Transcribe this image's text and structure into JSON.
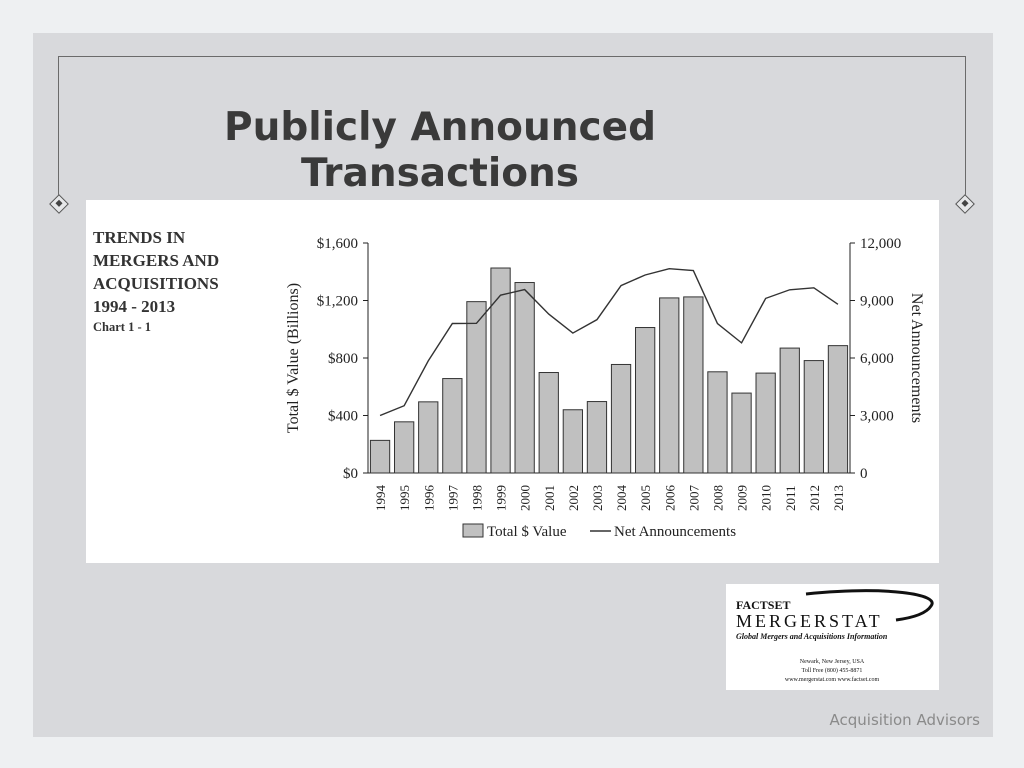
{
  "slide": {
    "title": "Publicly Announced Transactions",
    "footer": "Acquisition Advisors"
  },
  "chart_heading": {
    "line1": "TRENDS IN",
    "line2": "MERGERS AND",
    "line3": "ACQUISITIONS",
    "line4": "1994 - 2013",
    "line5": "Chart 1 - 1"
  },
  "logo": {
    "brand_top": "FACTSET",
    "brand_main": "MERGERSTAT",
    "tagline": "Global Mergers and Acquisitions Information",
    "address": "Newark, New Jersey, USA",
    "phone": "Toll Free (800) 455-8871",
    "websites": "www.mergerstat.com   www.factset.com"
  },
  "colors": {
    "bar_fill": "#c0c0c0",
    "bar_stroke": "#333333",
    "line": "#333333",
    "title": "#3a3a3a"
  },
  "chart_data": {
    "type": "bar",
    "title": "",
    "xlabel": "",
    "ylabel": "Total $ Value (Billions)",
    "y2label": "Net Announcements",
    "ylim": [
      0,
      1600
    ],
    "y2lim": [
      0,
      12000
    ],
    "y_ticks": [
      "$0",
      "$400",
      "$800",
      "$1,200",
      "$1,600"
    ],
    "y2_ticks": [
      "0",
      "3,000",
      "6,000",
      "9,000",
      "12,000"
    ],
    "categories": [
      "1994",
      "1995",
      "1996",
      "1997",
      "1998",
      "1999",
      "2000",
      "2001",
      "2002",
      "2003",
      "2004",
      "2005",
      "2006",
      "2007",
      "2008",
      "2009",
      "2010",
      "2011",
      "2012",
      "2013"
    ],
    "legend_position": "bottom",
    "series": [
      {
        "name": "Total $ Value",
        "type": "bar",
        "axis": "left",
        "values": [
          227,
          356,
          495,
          657,
          1192,
          1426,
          1325,
          699,
          440,
          497,
          755,
          1012,
          1218,
          1225,
          704,
          556,
          695,
          869,
          782,
          886
        ]
      },
      {
        "name": "Net Announcements",
        "type": "line",
        "axis": "right",
        "values": [
          3000,
          3510,
          5850,
          7800,
          7810,
          9280,
          9570,
          8290,
          7300,
          8000,
          9780,
          10330,
          10660,
          10560,
          7800,
          6790,
          9110,
          9560,
          9660,
          8800
        ]
      }
    ]
  }
}
